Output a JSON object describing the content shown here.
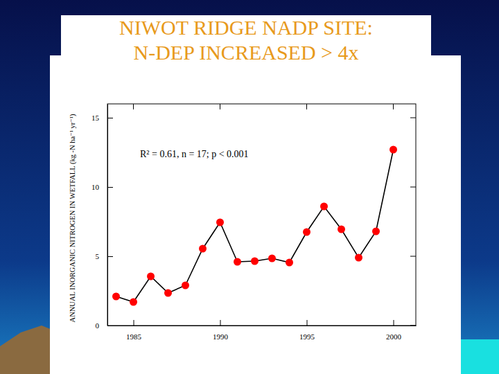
{
  "chart_data": {
    "type": "line",
    "title": "NIWOT RIDGE NADP SITE:",
    "subtitle": "N-DEP INCREASED > 4x",
    "y_label": "ANNUAL INORGANIC NITROGEN IN WETFALL (kg -N ha⁻¹ yr⁻¹)",
    "annotations": [
      "R² = 0.61, n = 17; p < 0.001"
    ],
    "x": [
      1984,
      1985,
      1986,
      1987,
      1988,
      1989,
      1990,
      1991,
      1992,
      1993,
      1994,
      1995,
      1996,
      1997,
      1998,
      1999,
      2000
    ],
    "values": [
      2.1,
      1.7,
      3.55,
      2.35,
      2.9,
      5.55,
      7.45,
      4.6,
      4.65,
      4.85,
      4.55,
      6.75,
      8.6,
      6.95,
      4.9,
      6.8,
      12.7
    ],
    "color": "#ff0000",
    "marker": "circle",
    "line_style": "solid",
    "xlim": [
      1983.5,
      2001.3
    ],
    "xticks": [
      1985,
      1990,
      1995,
      2000
    ],
    "ylim": [
      0,
      16
    ],
    "yticks": [
      0,
      5,
      10,
      15
    ],
    "grid": false
  }
}
